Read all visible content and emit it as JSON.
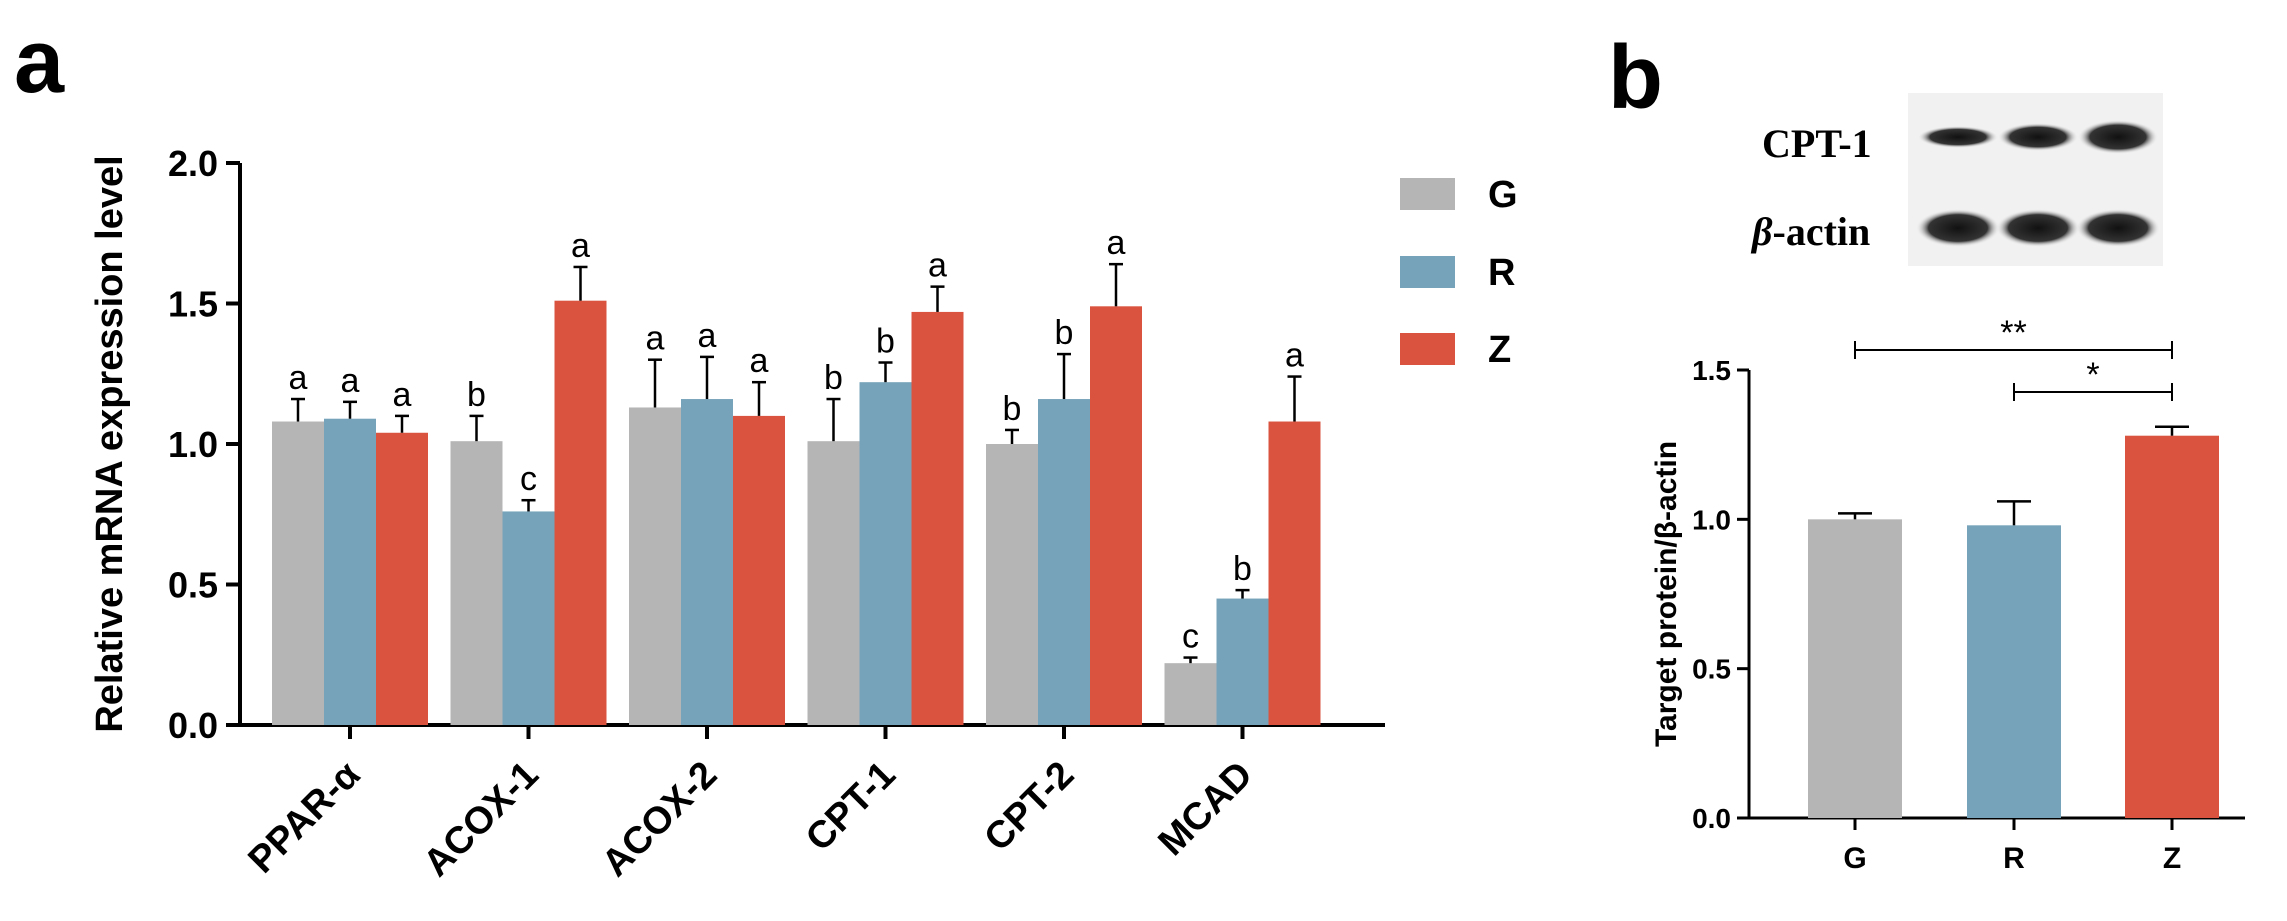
{
  "panel_a_label": "a",
  "panel_b_label": "b",
  "colors": {
    "G": "#b5b5b5",
    "R": "#77a3ba",
    "Z": "#d9533f"
  },
  "blot": {
    "label_top": "CPT-1",
    "label_bottom_greek": "β",
    "label_bottom_rest": "-actin"
  },
  "chart_data": [
    {
      "type": "bar",
      "title": "",
      "xlabel": "",
      "ylabel": "Relative mRNA expression level",
      "ylim": [
        0,
        2.0
      ],
      "yticks": [
        "0.0",
        "0.5",
        "1.0",
        "1.5",
        "2.0"
      ],
      "categories": [
        "PPAR-α",
        "ACOX-1",
        "ACOX-2",
        "CPT-1",
        "CPT-2",
        "MCAD"
      ],
      "legend": [
        "G",
        "R",
        "Z"
      ],
      "legend_position": "top-right",
      "series": [
        {
          "name": "G",
          "values": [
            1.08,
            1.01,
            1.13,
            1.01,
            1.0,
            0.22
          ],
          "errors": [
            0.08,
            0.09,
            0.17,
            0.15,
            0.05,
            0.02
          ],
          "letters": [
            "a",
            "b",
            "a",
            "b",
            "b",
            "c"
          ]
        },
        {
          "name": "R",
          "values": [
            1.09,
            0.76,
            1.16,
            1.22,
            1.16,
            0.45
          ],
          "errors": [
            0.06,
            0.04,
            0.15,
            0.07,
            0.16,
            0.03
          ],
          "letters": [
            "a",
            "c",
            "a",
            "b",
            "b",
            "b"
          ]
        },
        {
          "name": "Z",
          "values": [
            1.04,
            1.51,
            1.1,
            1.47,
            1.49,
            1.08
          ],
          "errors": [
            0.06,
            0.12,
            0.12,
            0.09,
            0.15,
            0.16
          ],
          "letters": [
            "a",
            "a",
            "a",
            "a",
            "a",
            "a"
          ]
        }
      ]
    },
    {
      "type": "bar",
      "title": "",
      "xlabel": "",
      "ylabel": "Target protein/β-actin",
      "ylim": [
        0,
        1.5
      ],
      "yticks": [
        "0.0",
        "0.5",
        "1.0",
        "1.5"
      ],
      "categories": [
        "G",
        "R",
        "Z"
      ],
      "values": [
        1.0,
        0.98,
        1.28
      ],
      "errors": [
        0.02,
        0.08,
        0.03
      ],
      "significance": [
        {
          "from": "G",
          "to": "Z",
          "label": "**"
        },
        {
          "from": "R",
          "to": "Z",
          "label": "*"
        }
      ]
    }
  ]
}
